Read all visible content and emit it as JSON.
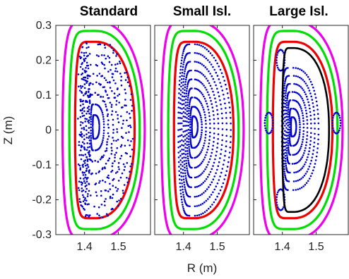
{
  "chart_data": [
    {
      "type": "scatter",
      "title": "Standard",
      "xlabel": "",
      "ylabel": "Z (m)",
      "xlim": [
        1.315,
        1.595
      ],
      "ylim": [
        -0.3,
        0.3
      ],
      "xticks": [
        1.4,
        1.5
      ],
      "yticks": [
        0.3,
        0.2,
        0.1,
        0,
        -0.1,
        -0.2,
        -0.3
      ],
      "ytick_labels": [
        "0.3",
        "0.2",
        "0.1",
        "0",
        "-0.1",
        "-0.2",
        "-0.3"
      ],
      "axis_center": [
        1.43,
        0.01
      ],
      "boundaries": [
        {
          "color": "#ee00ee",
          "inner_r": 1.335,
          "outer_r": 1.578,
          "half_height": 0.312
        },
        {
          "color": "#00dd00",
          "inner_r": 1.355,
          "outer_r": 1.563,
          "half_height": 0.284
        },
        {
          "color": "#ee0000",
          "inner_r": 1.372,
          "outer_r": 1.548,
          "half_height": 0.253
        }
      ],
      "island": null,
      "poincare": {
        "color": "#0000cc",
        "inner_r": 1.385,
        "outer_r": 1.54,
        "half_height": 0.246,
        "n_surfaces": 8,
        "style": "chaotic"
      }
    },
    {
      "type": "scatter",
      "title": "Small Isl.",
      "xlabel": "R (m)",
      "ylabel": "",
      "xlim": [
        1.315,
        1.595
      ],
      "ylim": [
        -0.3,
        0.3
      ],
      "xticks": [
        1.4,
        1.5
      ],
      "axis_center": [
        1.43,
        0.01
      ],
      "boundaries": [
        {
          "color": "#ee00ee",
          "inner_r": 1.335,
          "outer_r": 1.578,
          "half_height": 0.312
        },
        {
          "color": "#00dd00",
          "inner_r": 1.355,
          "outer_r": 1.563,
          "half_height": 0.284
        },
        {
          "color": "#ee0000",
          "inner_r": 1.372,
          "outer_r": 1.548,
          "half_height": 0.253
        }
      ],
      "island": null,
      "poincare": {
        "color": "#0000cc",
        "inner_r": 1.385,
        "outer_r": 1.54,
        "half_height": 0.246,
        "n_surfaces": 9,
        "style": "island"
      }
    },
    {
      "type": "scatter",
      "title": "Large Isl.",
      "xlabel": "",
      "ylabel": "",
      "xlim": [
        1.315,
        1.595
      ],
      "ylim": [
        -0.3,
        0.3
      ],
      "xticks": [
        1.4,
        1.5
      ],
      "axis_center": [
        1.43,
        0.01
      ],
      "boundaries": [
        {
          "color": "#ee00ee",
          "inner_r": 1.335,
          "outer_r": 1.578,
          "half_height": 0.312
        },
        {
          "color": "#00dd00",
          "inner_r": 1.355,
          "outer_r": 1.563,
          "half_height": 0.284
        },
        {
          "color": "#ee0000",
          "inner_r": 1.372,
          "outer_r": 1.548,
          "half_height": 0.253
        }
      ],
      "island": {
        "color": "#000000",
        "inner_r": 1.4,
        "outer_r": 1.538,
        "half_height": 0.235
      },
      "poincare": {
        "color": "#0000cc",
        "inner_r": 1.385,
        "outer_r": 1.54,
        "half_height": 0.246,
        "n_surfaces": 10,
        "style": "large-island"
      }
    }
  ]
}
